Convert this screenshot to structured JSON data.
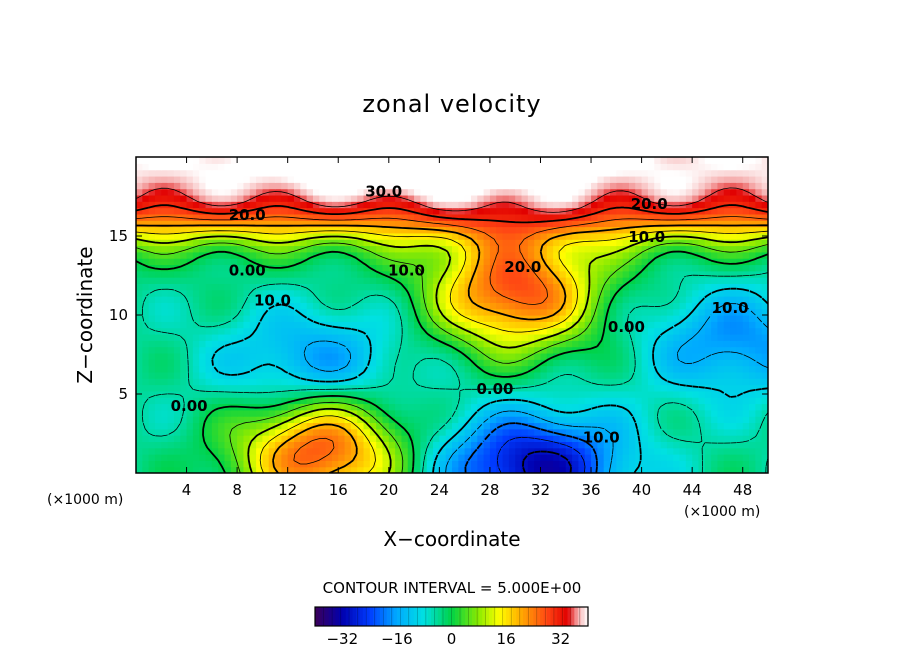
{
  "chart_data": {
    "type": "heatmap",
    "title": "zonal velocity",
    "xlabel": "X−coordinate",
    "ylabel": "Z−coordinate",
    "x_unit_left": "(×1000 m)",
    "x_unit_right": "(×1000 m)",
    "xlim": [
      0,
      50
    ],
    "ylim": [
      0,
      20
    ],
    "x_ticks": [
      4,
      8,
      12,
      16,
      20,
      24,
      28,
      32,
      36,
      40,
      44,
      48
    ],
    "x_tick_labels": [
      "4",
      "8",
      "12",
      "16",
      "20",
      "24",
      "28",
      "32",
      "36",
      "40",
      "44",
      "48"
    ],
    "y_ticks": [
      5,
      10,
      15
    ],
    "y_tick_labels": [
      "5",
      "10",
      "15"
    ],
    "contour_interval_text": "CONTOUR INTERVAL = 5.000E+00",
    "colorbar": {
      "range": [
        -40,
        40
      ],
      "ticks": [
        -32,
        -16,
        0,
        16,
        32
      ],
      "tick_labels": [
        "−32",
        "−16",
        "0",
        "16",
        "32"
      ]
    },
    "contour_labels": [
      {
        "text": "30.0",
        "x": 19.6,
        "z": 17.8
      },
      {
        "text": "20.0",
        "x": 8.8,
        "z": 16.3
      },
      {
        "text": "20.0",
        "x": 40.6,
        "z": 17.0
      },
      {
        "text": "20.0",
        "x": 30.6,
        "z": 13.0
      },
      {
        "text": "10.0",
        "x": 40.4,
        "z": 14.9
      },
      {
        "text": "10.0",
        "x": 21.4,
        "z": 12.8
      },
      {
        "text": "10.0",
        "x": 10.8,
        "z": 10.9
      },
      {
        "text": "10.0",
        "x": 47.0,
        "z": 10.4
      },
      {
        "text": "10.0",
        "x": 36.8,
        "z": 2.2
      },
      {
        "text": "0.00",
        "x": 8.8,
        "z": 12.8
      },
      {
        "text": "0.00",
        "x": 38.8,
        "z": 9.2
      },
      {
        "text": "0.00",
        "x": 28.4,
        "z": 5.3
      },
      {
        "text": "0.00",
        "x": 4.2,
        "z": 4.2
      }
    ],
    "features": [
      {
        "type": "max",
        "x": 30.0,
        "z": 11.5,
        "value": 28
      },
      {
        "type": "max",
        "x": 23.0,
        "z": 20.0,
        "value": 40
      },
      {
        "type": "max",
        "x": 14.5,
        "z": 1.4,
        "value": 28
      },
      {
        "type": "min",
        "x": 31.5,
        "z": 0.4,
        "value": -32
      },
      {
        "type": "min",
        "x": 14.0,
        "z": 6.8,
        "value": -18
      },
      {
        "type": "min",
        "x": 47.5,
        "z": 8.3,
        "value": -18
      }
    ]
  }
}
